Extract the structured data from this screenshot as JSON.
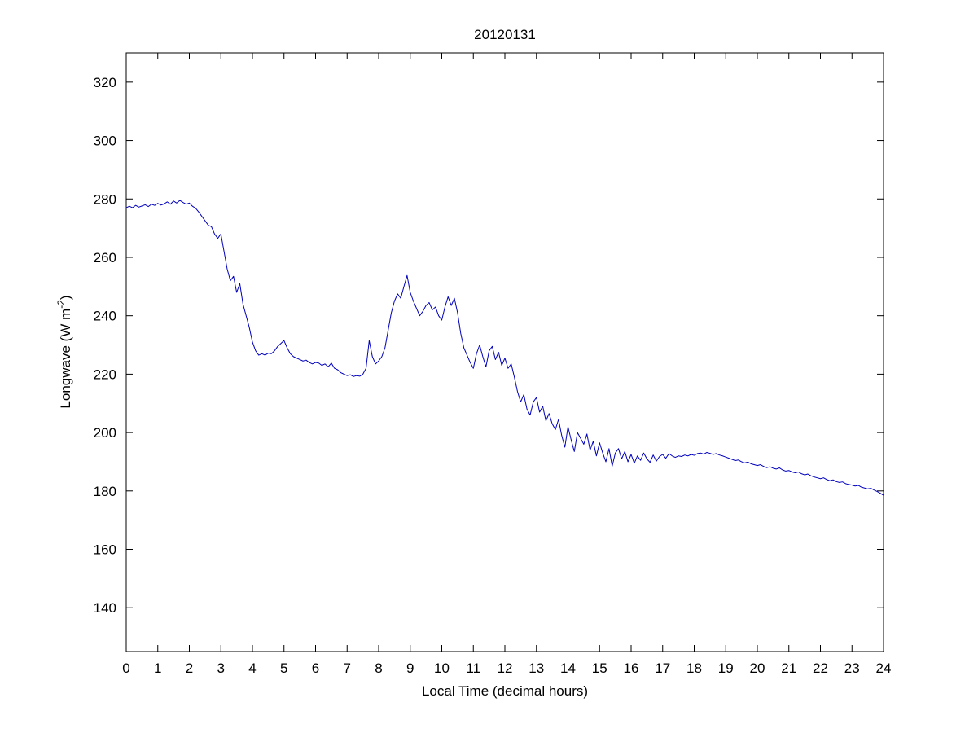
{
  "chart_data": {
    "type": "line",
    "title": "20120131",
    "xlabel": "Local Time (decimal hours)",
    "ylabel": {
      "pre": "Longwave (W m",
      "sup": "-2",
      "post": ")"
    },
    "xlim": [
      0,
      24
    ],
    "ylim": [
      125,
      330
    ],
    "xticks": [
      0,
      1,
      2,
      3,
      4,
      5,
      6,
      7,
      8,
      9,
      10,
      11,
      12,
      13,
      14,
      15,
      16,
      17,
      18,
      19,
      20,
      21,
      22,
      23,
      24
    ],
    "yticks": [
      140,
      160,
      180,
      200,
      220,
      240,
      260,
      280,
      300,
      320
    ],
    "grid": false,
    "legend": null,
    "line_color": "#0000BB",
    "axis_color": "#000000",
    "background_color": "#ffffff",
    "series": [
      {
        "name": "longwave",
        "x_start": 0,
        "x_step": 0.1,
        "values": [
          277,
          277.5,
          277,
          277.8,
          277.2,
          277.6,
          278,
          277.4,
          278.2,
          277.8,
          278.5,
          277.9,
          278.3,
          279,
          278.2,
          279.3,
          278.6,
          279.5,
          278.8,
          278.2,
          278.6,
          277.5,
          276.8,
          275.5,
          274,
          272.5,
          271,
          270.5,
          268,
          266.5,
          268,
          262,
          256,
          252,
          253.5,
          248,
          251,
          244,
          240,
          236,
          231,
          228,
          226.5,
          227,
          226.5,
          227.2,
          227,
          228,
          229.5,
          230.5,
          231.5,
          229,
          227,
          226,
          225.5,
          225,
          224.5,
          224.8,
          224,
          223.5,
          224,
          223.8,
          223,
          223.5,
          222.5,
          223.8,
          222,
          221.5,
          220.5,
          220,
          219.5,
          219.8,
          219.2,
          219.5,
          219.3,
          220,
          222,
          231.5,
          226,
          223.5,
          224.5,
          226,
          229,
          235,
          241,
          245,
          247.5,
          246,
          250,
          253.8,
          248,
          245,
          242.5,
          240,
          241.5,
          243.5,
          244.5,
          242,
          243,
          240,
          238.5,
          243,
          246.5,
          243.5,
          246,
          241,
          234,
          229,
          226.5,
          224,
          222,
          227,
          230,
          226,
          222.5,
          228,
          229.5,
          225,
          227.5,
          223,
          225.5,
          222,
          223.5,
          219,
          214,
          210.5,
          213,
          208,
          206,
          210.5,
          212,
          207,
          209,
          204,
          206.5,
          203,
          201,
          204.5,
          199,
          195,
          202,
          197.5,
          193.5,
          200,
          198,
          196,
          199.5,
          194,
          197,
          192,
          196.5,
          193,
          190,
          194.5,
          188.5,
          193,
          194.5,
          191,
          193.5,
          190,
          192.5,
          189.5,
          192,
          190.5,
          193,
          191,
          189.8,
          192.3,
          190.2,
          191.8,
          192.5,
          191.2,
          192.8,
          192,
          191.5,
          192,
          191.8,
          192.3,
          192,
          192.5,
          192.2,
          192.8,
          193,
          192.6,
          193.2,
          192.9,
          192.5,
          192.8,
          192.3,
          192,
          191.6,
          191.2,
          190.8,
          190.4,
          190.6,
          190,
          189.6,
          189.9,
          189.3,
          189,
          188.7,
          189,
          188.4,
          188,
          188.3,
          187.8,
          187.5,
          187.9,
          187.2,
          186.8,
          187,
          186.5,
          186.2,
          186.5,
          185.9,
          185.5,
          185.8,
          185.2,
          184.8,
          184.5,
          184.2,
          184.5,
          183.9,
          183.5,
          183.8,
          183.2,
          182.9,
          183.1,
          182.5,
          182.2,
          182,
          181.7,
          181.9,
          181.3,
          181,
          180.7,
          180.9,
          180.3,
          179.8,
          179.2,
          178.5
        ]
      }
    ]
  }
}
